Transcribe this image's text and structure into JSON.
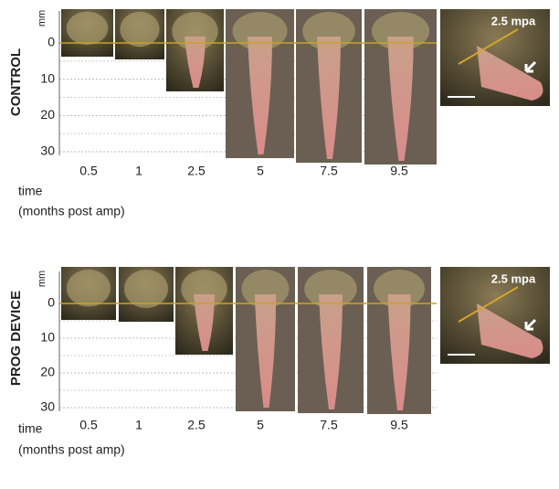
{
  "panels": [
    {
      "label": "CONTROL",
      "unit": "mm",
      "yticks": [
        0,
        10,
        20,
        30
      ],
      "times": [
        0.5,
        1,
        2.5,
        5,
        7.5,
        9.5
      ],
      "x_title": "time",
      "x_subtitle": "(months post amp)",
      "inset_label": "2.5 mpa"
    },
    {
      "label": "PROG DEVICE",
      "unit": "mm",
      "yticks": [
        0,
        10,
        20,
        30
      ],
      "times": [
        0.5,
        1,
        2.5,
        5,
        7.5,
        9.5
      ],
      "x_title": "time",
      "x_subtitle": "(months post amp)",
      "inset_label": "2.5 mpa"
    }
  ]
}
